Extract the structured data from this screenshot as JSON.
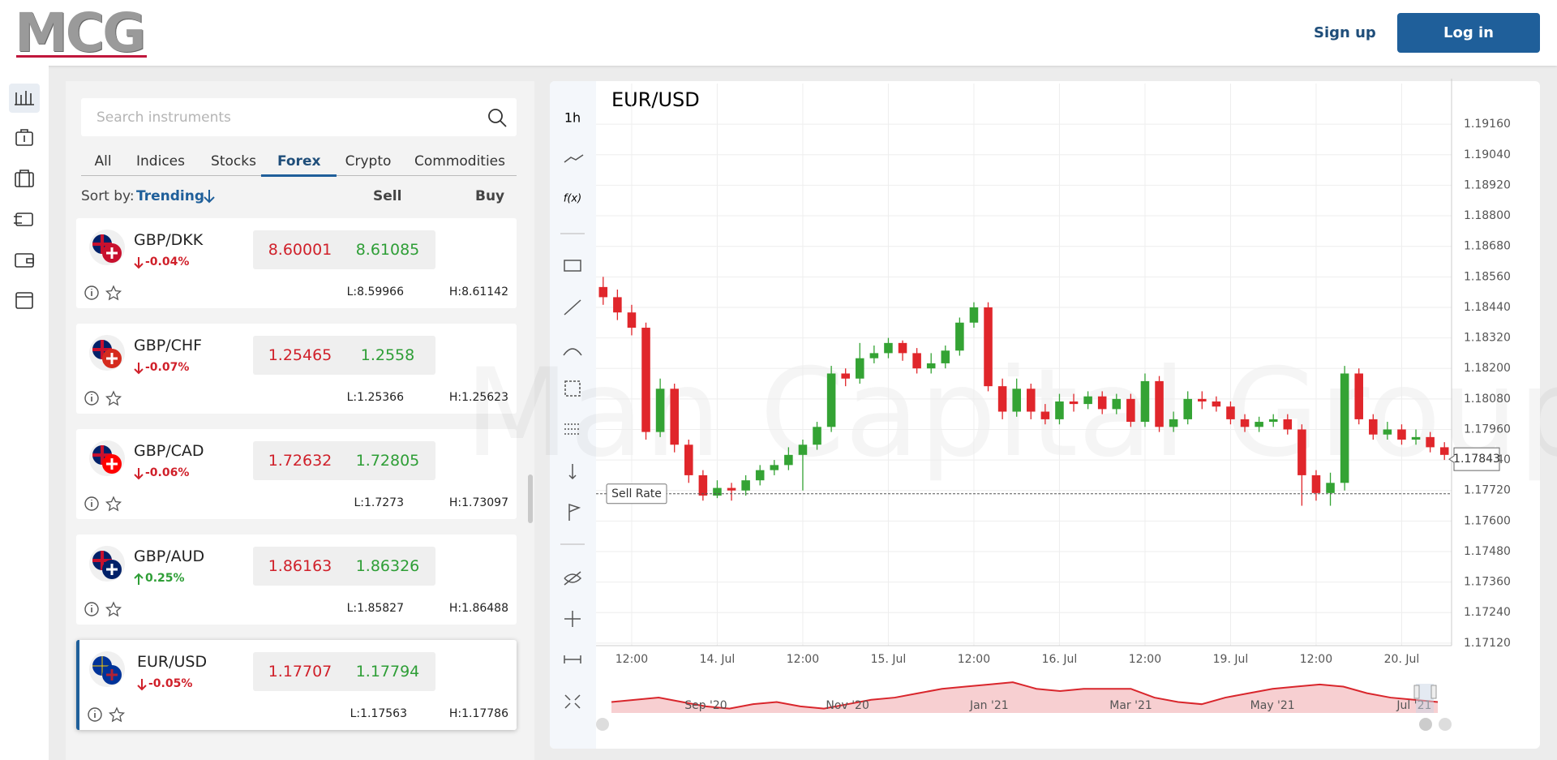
{
  "header": {
    "logo": "MCG",
    "sign_up": "Sign up",
    "log_in": "Log in"
  },
  "search_placeholder": "Search instruments",
  "tabs": [
    "All",
    "Indices",
    "Stocks",
    "Forex",
    "Crypto",
    "Commodities"
  ],
  "active_tab": 3,
  "sort": {
    "label": "Sort by:",
    "value": "Trending"
  },
  "columns": {
    "sell": "Sell",
    "buy": "Buy"
  },
  "selected_instrument": 4,
  "instruments": [
    {
      "name": "GBP/DKK",
      "change": "-0.04%",
      "sell": "8.60001",
      "buy": "8.61085",
      "low": "L:8.59966",
      "high": "H:8.61142"
    },
    {
      "name": "GBP/CHF",
      "change": "-0.07%",
      "sell": "1.25465",
      "buy": "1.2558",
      "low": "L:1.25366",
      "high": "H:1.25623"
    },
    {
      "name": "GBP/CAD",
      "change": "-0.06%",
      "sell": "1.72632",
      "buy": "1.72805",
      "low": "L:1.7273",
      "high": "H:1.73097"
    },
    {
      "name": "GBP/AUD",
      "change": "0.25%",
      "sell": "1.86163",
      "buy": "1.86326",
      "low": "L:1.85827",
      "high": "H:1.86488"
    },
    {
      "name": "EUR/USD",
      "change": "-0.05%",
      "sell": "1.17707",
      "buy": "1.17794",
      "low": "L:1.17563",
      "high": "H:1.17786"
    }
  ],
  "toolbar": {
    "timeframe": "1h",
    "functions": "f(x)"
  },
  "chart_data": {
    "type": "candlestick",
    "title": "EUR/USD",
    "watermark": "Man Capital Group",
    "categories": [
      null,
      null,
      "12:00",
      null,
      null,
      null,
      null,
      null,
      "14. Jul",
      null,
      null,
      null,
      null,
      null,
      "12:00",
      null,
      null,
      null,
      null,
      null,
      "15. Jul",
      null,
      null,
      null,
      null,
      null,
      "12:00",
      null,
      null,
      null,
      null,
      null,
      "16. Jul",
      null,
      null,
      null,
      null,
      null,
      "12:00",
      null,
      null,
      null,
      null,
      null,
      "19. Jul",
      null,
      null,
      null,
      null,
      null,
      "12:00",
      null,
      null,
      null,
      null,
      null,
      "20. Jul",
      null,
      null,
      null
    ],
    "open": [
      1.1852,
      1.1848,
      1.1842,
      1.1836,
      1.1795,
      1.1812,
      1.179,
      1.1778,
      1.177,
      1.1773,
      1.1772,
      1.1776,
      1.178,
      1.1782,
      1.1786,
      1.179,
      1.1797,
      1.1818,
      1.1816,
      1.1824,
      1.1826,
      1.183,
      1.1826,
      1.182,
      1.1822,
      1.1827,
      1.1838,
      1.1844,
      1.1813,
      1.1803,
      1.1812,
      1.1803,
      1.18,
      1.1807,
      1.1806,
      1.1809,
      1.1804,
      1.1808,
      1.1799,
      1.1815,
      1.1797,
      1.18,
      1.1808,
      1.1807,
      1.1805,
      1.18,
      1.1797,
      1.1799,
      1.18,
      1.1796,
      1.1778,
      1.1771,
      1.1775,
      1.1818,
      1.18,
      1.1794,
      1.1796,
      1.1792,
      1.1793,
      1.1789
    ],
    "high": [
      1.1856,
      1.1851,
      1.1845,
      1.1838,
      1.1816,
      1.1814,
      1.1792,
      1.178,
      1.1776,
      1.1775,
      1.1778,
      1.1782,
      1.1784,
      1.1789,
      1.1792,
      1.1799,
      1.1821,
      1.182,
      1.183,
      1.1829,
      1.1832,
      1.1831,
      1.1828,
      1.1826,
      1.1829,
      1.184,
      1.1846,
      1.1846,
      1.1816,
      1.1816,
      1.1814,
      1.1806,
      1.181,
      1.181,
      1.1811,
      1.1811,
      1.181,
      1.181,
      1.1818,
      1.1817,
      1.1803,
      1.1811,
      1.1811,
      1.1809,
      1.1807,
      1.1802,
      1.1801,
      1.1802,
      1.1802,
      1.1798,
      1.178,
      1.1779,
      1.1821,
      1.182,
      1.1802,
      1.1799,
      1.1798,
      1.1796,
      1.1795,
      1.1791
    ],
    "low": [
      1.1845,
      1.1839,
      1.1833,
      1.1792,
      1.1793,
      1.1787,
      1.1775,
      1.1768,
      1.1769,
      1.1768,
      1.177,
      1.1774,
      1.1778,
      1.178,
      1.1772,
      1.1788,
      1.1795,
      1.1813,
      1.1814,
      1.1822,
      1.1824,
      1.1823,
      1.1818,
      1.1818,
      1.182,
      1.1825,
      1.1836,
      1.1811,
      1.18,
      1.1801,
      1.18,
      1.1798,
      1.1798,
      1.1803,
      1.1804,
      1.1802,
      1.1802,
      1.1797,
      1.1797,
      1.1795,
      1.1795,
      1.1798,
      1.1804,
      1.1803,
      1.1798,
      1.1795,
      1.1795,
      1.1797,
      1.1794,
      1.1766,
      1.1768,
      1.1766,
      1.1772,
      1.1798,
      1.1792,
      1.1792,
      1.179,
      1.179,
      1.1787,
      1.1784
    ],
    "close": [
      1.1848,
      1.1842,
      1.1836,
      1.1795,
      1.1812,
      1.179,
      1.1778,
      1.177,
      1.1773,
      1.1772,
      1.1776,
      1.178,
      1.1782,
      1.1786,
      1.179,
      1.1797,
      1.1818,
      1.1816,
      1.1824,
      1.1826,
      1.183,
      1.1826,
      1.182,
      1.1822,
      1.1827,
      1.1838,
      1.1844,
      1.1813,
      1.1803,
      1.1812,
      1.1803,
      1.18,
      1.1807,
      1.1806,
      1.1809,
      1.1804,
      1.1808,
      1.1799,
      1.1815,
      1.1797,
      1.18,
      1.1808,
      1.1807,
      1.1805,
      1.18,
      1.1797,
      1.1799,
      1.18,
      1.1796,
      1.1778,
      1.1771,
      1.1775,
      1.1818,
      1.18,
      1.1794,
      1.1796,
      1.1792,
      1.1793,
      1.1789,
      1.1786
    ],
    "up_color": "#34a334",
    "down_color": "#e0262b",
    "ylim": [
      1.1711,
      1.1932
    ],
    "yticks": [
      {
        "value": 1.1916,
        "label": "1.19160"
      },
      {
        "value": 1.1904,
        "label": "1.19040"
      },
      {
        "value": 1.1892,
        "label": "1.18920"
      },
      {
        "value": 1.188,
        "label": "1.18800"
      },
      {
        "value": 1.1868,
        "label": "1.18680"
      },
      {
        "value": 1.1856,
        "label": "1.18560"
      },
      {
        "value": 1.1844,
        "label": "1.18440"
      },
      {
        "value": 1.1832,
        "label": "1.18320"
      },
      {
        "value": 1.182,
        "label": "1.18200"
      },
      {
        "value": 1.1808,
        "label": "1.18080"
      },
      {
        "value": 1.1796,
        "label": "1.17960"
      },
      {
        "value": 1.1784,
        "label": "1.17840"
      },
      {
        "value": 1.1772,
        "label": "1.17720"
      },
      {
        "value": 1.176,
        "label": "1.17600"
      },
      {
        "value": 1.1748,
        "label": "1.17480"
      },
      {
        "value": 1.1736,
        "label": "1.17360"
      },
      {
        "value": 1.1724,
        "label": "1.17240"
      },
      {
        "value": 1.1712,
        "label": "1.17120"
      }
    ],
    "grid": true,
    "last_price": 1.17843,
    "sell_rate_label": "Sell Rate",
    "sell_rate": 1.17707,
    "navigator": {
      "categories": [
        null,
        null,
        null,
        null,
        "Sep '20",
        null,
        null,
        null,
        null,
        null,
        "Nov '20",
        null,
        null,
        null,
        null,
        null,
        "Jan '21",
        null,
        null,
        null,
        null,
        null,
        "Mar '21",
        null,
        null,
        null,
        null,
        null,
        "May '21",
        null,
        null,
        null,
        null,
        null,
        "Jul '21",
        null
      ],
      "values": [
        1.18,
        1.185,
        1.19,
        1.18,
        1.17,
        1.165,
        1.175,
        1.18,
        1.17,
        1.165,
        1.175,
        1.185,
        1.19,
        1.2,
        1.21,
        1.215,
        1.22,
        1.225,
        1.21,
        1.205,
        1.21,
        1.21,
        1.21,
        1.19,
        1.18,
        1.175,
        1.19,
        1.2,
        1.21,
        1.215,
        1.22,
        1.215,
        1.2,
        1.19,
        1.185,
        1.18
      ],
      "ylim": [
        1.155,
        1.24
      ],
      "color": "#d9262c"
    }
  }
}
